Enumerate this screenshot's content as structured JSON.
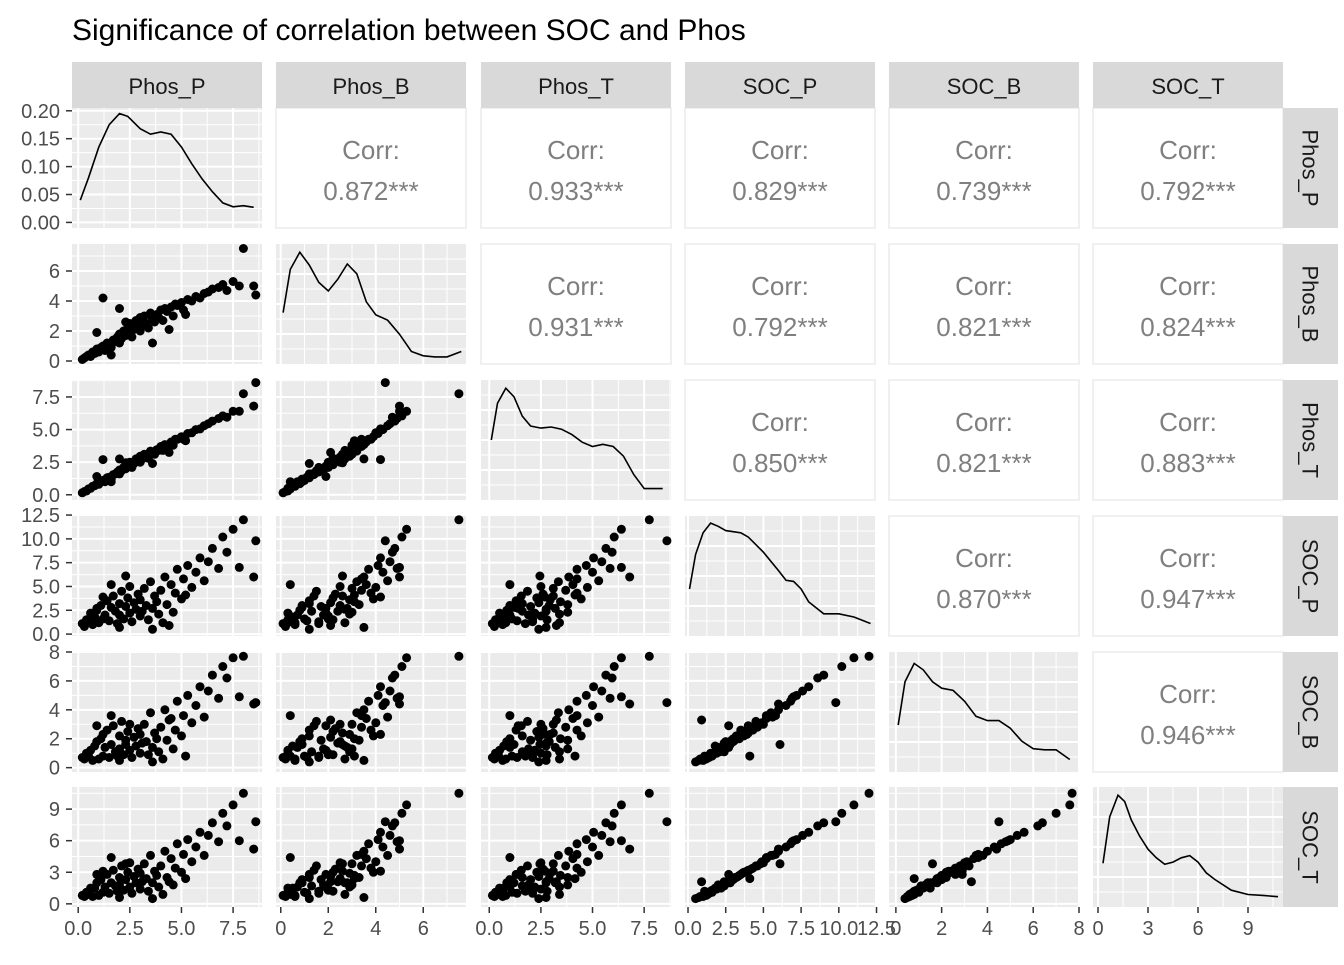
{
  "chart_data": {
    "type": "scatter_matrix",
    "title": "Significance of correlation between SOC and Phos",
    "variables": [
      "Phos_P",
      "Phos_B",
      "Phos_T",
      "SOC_P",
      "SOC_B",
      "SOC_T"
    ],
    "correlation_label": "Corr:",
    "correlations": [
      {
        "row": "Phos_P",
        "col": "Phos_B",
        "text": "0.872***"
      },
      {
        "row": "Phos_P",
        "col": "Phos_T",
        "text": "0.933***"
      },
      {
        "row": "Phos_P",
        "col": "SOC_P",
        "text": "0.829***"
      },
      {
        "row": "Phos_P",
        "col": "SOC_B",
        "text": "0.739***"
      },
      {
        "row": "Phos_P",
        "col": "SOC_T",
        "text": "0.792***"
      },
      {
        "row": "Phos_B",
        "col": "Phos_T",
        "text": "0.931***"
      },
      {
        "row": "Phos_B",
        "col": "SOC_P",
        "text": "0.792***"
      },
      {
        "row": "Phos_B",
        "col": "SOC_B",
        "text": "0.821***"
      },
      {
        "row": "Phos_B",
        "col": "SOC_T",
        "text": "0.824***"
      },
      {
        "row": "Phos_T",
        "col": "SOC_P",
        "text": "0.850***"
      },
      {
        "row": "Phos_T",
        "col": "SOC_B",
        "text": "0.821***"
      },
      {
        "row": "Phos_T",
        "col": "SOC_T",
        "text": "0.883***"
      },
      {
        "row": "SOC_P",
        "col": "SOC_B",
        "text": "0.870***"
      },
      {
        "row": "SOC_P",
        "col": "SOC_T",
        "text": "0.947***"
      },
      {
        "row": "SOC_B",
        "col": "SOC_T",
        "text": "0.946***"
      }
    ],
    "axes": {
      "Phos_P": {
        "range": [
          -0.3,
          8.9
        ],
        "ticks": [
          "0.0",
          "2.5",
          "5.0",
          "7.5"
        ],
        "tick_values": [
          0,
          2.5,
          5,
          7.5
        ]
      },
      "Phos_B": {
        "range": [
          -0.2,
          7.8
        ],
        "ticks": [
          "0",
          "2",
          "4",
          "6"
        ],
        "tick_values": [
          0,
          2,
          4,
          6
        ]
      },
      "Phos_T": {
        "range": [
          -0.4,
          8.8
        ],
        "ticks": [
          "0.0",
          "2.5",
          "5.0",
          "7.5"
        ],
        "tick_values": [
          0,
          2.5,
          5,
          7.5
        ]
      },
      "SOC_P": {
        "range": [
          -0.2,
          12.4
        ],
        "ticks": [
          "0.0",
          "2.5",
          "5.0",
          "7.5",
          "10.0",
          "12.5"
        ],
        "tick_values": [
          0,
          2.5,
          5,
          7.5,
          10,
          12.5
        ]
      },
      "SOC_B": {
        "range": [
          -0.3,
          8.0
        ],
        "ticks": [
          "0",
          "2",
          "4",
          "6",
          "8"
        ],
        "tick_values": [
          0,
          2,
          4,
          6,
          8
        ]
      },
      "SOC_T": {
        "range": [
          -0.3,
          11.1
        ],
        "ticks": [
          "0",
          "3",
          "6",
          "9"
        ],
        "tick_values": [
          0,
          3,
          6,
          9
        ]
      }
    },
    "density_axis": {
      "range": [
        -0.01,
        0.205
      ],
      "ticks": [
        "0.00",
        "0.05",
        "0.10",
        "0.15",
        "0.20"
      ],
      "tick_values": [
        0,
        0.05,
        0.1,
        0.15,
        0.2
      ]
    },
    "densities": {
      "Phos_P": {
        "x": [
          0.1,
          0.5,
          1,
          1.5,
          2,
          2.4,
          3,
          3.5,
          4,
          4.5,
          5,
          5.5,
          6,
          6.5,
          7,
          7.5,
          8,
          8.5
        ],
        "y": [
          0.04,
          0.08,
          0.135,
          0.175,
          0.195,
          0.19,
          0.168,
          0.158,
          0.162,
          0.158,
          0.135,
          0.105,
          0.078,
          0.055,
          0.035,
          0.028,
          0.03,
          0.027
        ]
      },
      "Phos_B": {
        "range": [
          0.1,
          7.6
        ],
        "x": [
          0.1,
          0.4,
          0.8,
          1.2,
          1.6,
          2,
          2.4,
          2.8,
          3.2,
          3.6,
          4,
          4.5,
          5,
          5.5,
          6,
          6.5,
          7,
          7.6
        ],
        "y": [
          0.42,
          0.82,
          0.98,
          0.86,
          0.7,
          0.62,
          0.73,
          0.87,
          0.78,
          0.52,
          0.4,
          0.35,
          0.22,
          0.06,
          0.02,
          0.01,
          0.01,
          0.06
        ]
      },
      "Phos_T": {
        "range": [
          0.1,
          8.4
        ],
        "x": [
          0.1,
          0.4,
          0.8,
          1.2,
          1.6,
          2,
          2.5,
          3,
          3.5,
          4,
          4.5,
          5,
          5.5,
          6,
          6.5,
          7,
          7.5,
          8.4
        ],
        "y": [
          0.5,
          0.84,
          0.98,
          0.9,
          0.72,
          0.63,
          0.61,
          0.62,
          0.6,
          0.55,
          0.48,
          0.44,
          0.46,
          0.44,
          0.35,
          0.18,
          0.05,
          0.05
        ]
      },
      "SOC_P": {
        "range": [
          0.1,
          12.1
        ],
        "x": [
          0.1,
          0.5,
          1,
          1.5,
          2,
          2.5,
          3,
          3.5,
          4,
          5,
          6,
          6.5,
          7,
          7.5,
          8,
          9,
          10,
          11,
          12.1
        ],
        "y": [
          0.38,
          0.7,
          0.9,
          0.99,
          0.96,
          0.92,
          0.91,
          0.9,
          0.86,
          0.72,
          0.55,
          0.46,
          0.45,
          0.38,
          0.26,
          0.15,
          0.15,
          0.12,
          0.06
        ]
      },
      "SOC_B": {
        "range": [
          0.1,
          7.6
        ],
        "x": [
          0.1,
          0.4,
          0.8,
          1.2,
          1.6,
          2,
          2.5,
          3,
          3.5,
          4,
          4.5,
          5,
          5.5,
          6,
          6.5,
          7,
          7.6
        ],
        "y": [
          0.38,
          0.78,
          0.95,
          0.89,
          0.78,
          0.72,
          0.7,
          0.6,
          0.46,
          0.42,
          0.42,
          0.35,
          0.23,
          0.16,
          0.15,
          0.15,
          0.06
        ]
      },
      "SOC_T": {
        "range": [
          0.3,
          10.8
        ],
        "x": [
          0.3,
          0.7,
          1.2,
          1.6,
          2,
          2.5,
          3,
          3.5,
          4,
          4.5,
          5,
          5.5,
          6,
          6.5,
          7,
          8,
          9,
          10,
          10.8
        ],
        "y": [
          0.35,
          0.78,
          0.98,
          0.92,
          0.75,
          0.6,
          0.48,
          0.4,
          0.34,
          0.36,
          0.4,
          0.42,
          0.36,
          0.26,
          0.2,
          0.1,
          0.06,
          0.05,
          0.04
        ]
      }
    },
    "points": [
      {
        "Phos_P": 0.2,
        "Phos_B": 0.1,
        "Phos_T": 0.15,
        "SOC_P": 1.1,
        "SOC_B": 0.7,
        "SOC_T": 0.8
      },
      {
        "Phos_P": 0.3,
        "Phos_B": 0.2,
        "Phos_T": 0.25,
        "SOC_P": 0.8,
        "SOC_B": 0.6,
        "SOC_T": 0.7
      },
      {
        "Phos_P": 0.4,
        "Phos_B": 0.3,
        "Phos_T": 0.3,
        "SOC_P": 1.5,
        "SOC_B": 1.0,
        "SOC_T": 1.1
      },
      {
        "Phos_P": 0.5,
        "Phos_B": 0.4,
        "Phos_T": 0.45,
        "SOC_P": 1.3,
        "SOC_B": 0.8,
        "SOC_T": 0.9
      },
      {
        "Phos_P": 0.6,
        "Phos_B": 0.3,
        "Phos_T": 0.5,
        "SOC_P": 2.2,
        "SOC_B": 1.2,
        "SOC_T": 1.5
      },
      {
        "Phos_P": 0.7,
        "Phos_B": 0.6,
        "Phos_T": 0.65,
        "SOC_P": 1.0,
        "SOC_B": 0.5,
        "SOC_T": 0.7
      },
      {
        "Phos_P": 0.8,
        "Phos_B": 0.5,
        "Phos_T": 0.7,
        "SOC_P": 1.8,
        "SOC_B": 1.5,
        "SOC_T": 1.5
      },
      {
        "Phos_P": 0.9,
        "Phos_B": 0.8,
        "Phos_T": 0.85,
        "SOC_P": 2.5,
        "SOC_B": 1.8,
        "SOC_T": 2.0
      },
      {
        "Phos_P": 1.0,
        "Phos_B": 0.6,
        "Phos_T": 0.8,
        "SOC_P": 1.2,
        "SOC_B": 0.6,
        "SOC_T": 0.8
      },
      {
        "Phos_P": 1.1,
        "Phos_B": 0.9,
        "Phos_T": 1.0,
        "SOC_P": 3.0,
        "SOC_B": 2.0,
        "SOC_T": 2.3
      },
      {
        "Phos_P": 1.2,
        "Phos_B": 1.0,
        "Phos_T": 1.1,
        "SOC_P": 1.6,
        "SOC_B": 0.8,
        "SOC_T": 1.1
      },
      {
        "Phos_P": 1.3,
        "Phos_B": 0.7,
        "Phos_T": 1.0,
        "SOC_P": 2.0,
        "SOC_B": 1.4,
        "SOC_T": 1.6
      },
      {
        "Phos_P": 1.4,
        "Phos_B": 1.2,
        "Phos_T": 1.3,
        "SOC_P": 3.5,
        "SOC_B": 2.6,
        "SOC_T": 2.8
      },
      {
        "Phos_P": 1.5,
        "Phos_B": 1.1,
        "Phos_T": 1.35,
        "SOC_P": 1.4,
        "SOC_B": 0.7,
        "SOC_T": 1.0
      },
      {
        "Phos_P": 1.6,
        "Phos_B": 0.9,
        "Phos_T": 1.2,
        "SOC_P": 2.8,
        "SOC_B": 1.6,
        "SOC_T": 2.0
      },
      {
        "Phos_P": 1.7,
        "Phos_B": 1.4,
        "Phos_T": 1.55,
        "SOC_P": 4.0,
        "SOC_B": 2.9,
        "SOC_T": 3.2
      },
      {
        "Phos_P": 1.8,
        "Phos_B": 1.3,
        "Phos_T": 1.6,
        "SOC_P": 2.4,
        "SOC_B": 1.1,
        "SOC_T": 1.7
      },
      {
        "Phos_P": 1.9,
        "Phos_B": 1.6,
        "Phos_T": 1.75,
        "SOC_P": 1.1,
        "SOC_B": 0.8,
        "SOC_T": 1.2
      },
      {
        "Phos_P": 2.0,
        "Phos_B": 1.2,
        "Phos_T": 1.6,
        "SOC_P": 3.2,
        "SOC_B": 2.2,
        "SOC_T": 2.5
      },
      {
        "Phos_P": 2.0,
        "Phos_B": 1.8,
        "Phos_T": 1.9,
        "SOC_P": 2.0,
        "SOC_B": 1.3,
        "SOC_T": 1.8
      },
      {
        "Phos_P": 2.1,
        "Phos_B": 1.5,
        "Phos_T": 1.85,
        "SOC_P": 4.5,
        "SOC_B": 3.2,
        "SOC_T": 3.6
      },
      {
        "Phos_P": 2.2,
        "Phos_B": 2.0,
        "Phos_T": 2.1,
        "SOC_P": 1.6,
        "SOC_B": 0.9,
        "SOC_T": 1.3
      },
      {
        "Phos_P": 2.3,
        "Phos_B": 1.7,
        "Phos_T": 2.0,
        "SOC_P": 2.9,
        "SOC_B": 1.9,
        "SOC_T": 2.3
      },
      {
        "Phos_P": 2.4,
        "Phos_B": 2.2,
        "Phos_T": 2.3,
        "SOC_P": 3.8,
        "SOC_B": 2.5,
        "SOC_T": 3.0
      },
      {
        "Phos_P": 2.5,
        "Phos_B": 1.9,
        "Phos_T": 2.2,
        "SOC_P": 2.2,
        "SOC_B": 1.2,
        "SOC_T": 1.6
      },
      {
        "Phos_P": 2.5,
        "Phos_B": 2.5,
        "Phos_T": 2.5,
        "SOC_P": 5.0,
        "SOC_B": 3.0,
        "SOC_T": 3.9
      },
      {
        "Phos_P": 2.6,
        "Phos_B": 1.6,
        "Phos_T": 2.1,
        "SOC_P": 1.3,
        "SOC_B": 0.7,
        "SOC_T": 1.0
      },
      {
        "Phos_P": 2.7,
        "Phos_B": 2.1,
        "Phos_T": 2.4,
        "SOC_P": 3.3,
        "SOC_B": 2.1,
        "SOC_T": 2.6
      },
      {
        "Phos_P": 2.8,
        "Phos_B": 2.7,
        "Phos_T": 2.75,
        "SOC_P": 2.6,
        "SOC_B": 1.5,
        "SOC_T": 2.0
      },
      {
        "Phos_P": 2.9,
        "Phos_B": 2.3,
        "Phos_T": 2.6,
        "SOC_P": 4.2,
        "SOC_B": 2.7,
        "SOC_T": 3.3
      },
      {
        "Phos_P": 3.0,
        "Phos_B": 2.0,
        "Phos_T": 2.5,
        "SOC_P": 1.9,
        "SOC_B": 1.0,
        "SOC_T": 1.4
      },
      {
        "Phos_P": 3.0,
        "Phos_B": 2.9,
        "Phos_T": 2.95,
        "SOC_P": 3.6,
        "SOC_B": 2.3,
        "SOC_T": 2.9
      },
      {
        "Phos_P": 3.1,
        "Phos_B": 2.4,
        "Phos_T": 2.75,
        "SOC_P": 2.4,
        "SOC_B": 1.7,
        "SOC_T": 2.1
      },
      {
        "Phos_P": 3.2,
        "Phos_B": 3.0,
        "Phos_T": 3.1,
        "SOC_P": 4.8,
        "SOC_B": 3.0,
        "SOC_T": 3.8
      },
      {
        "Phos_P": 3.3,
        "Phos_B": 2.5,
        "Phos_T": 2.9,
        "SOC_P": 3.0,
        "SOC_B": 1.8,
        "SOC_T": 2.4
      },
      {
        "Phos_P": 3.4,
        "Phos_B": 2.2,
        "Phos_T": 2.8,
        "SOC_P": 1.5,
        "SOC_B": 0.9,
        "SOC_T": 1.2
      },
      {
        "Phos_P": 3.5,
        "Phos_B": 3.2,
        "Phos_T": 3.35,
        "SOC_P": 5.5,
        "SOC_B": 3.8,
        "SOC_T": 4.6
      },
      {
        "Phos_P": 3.6,
        "Phos_B": 2.8,
        "Phos_T": 3.2,
        "SOC_P": 2.7,
        "SOC_B": 1.4,
        "SOC_T": 2.0
      },
      {
        "Phos_P": 3.7,
        "Phos_B": 2.6,
        "Phos_T": 3.1,
        "SOC_P": 4.0,
        "SOC_B": 2.4,
        "SOC_T": 3.1
      },
      {
        "Phos_P": 3.8,
        "Phos_B": 3.1,
        "Phos_T": 3.45,
        "SOC_P": 3.4,
        "SOC_B": 2.0,
        "SOC_T": 2.7
      },
      {
        "Phos_P": 3.9,
        "Phos_B": 2.9,
        "Phos_T": 3.4,
        "SOC_P": 2.1,
        "SOC_B": 1.1,
        "SOC_T": 1.6
      },
      {
        "Phos_P": 4.0,
        "Phos_B": 3.4,
        "Phos_T": 3.7,
        "SOC_P": 4.6,
        "SOC_B": 2.8,
        "SOC_T": 3.6
      },
      {
        "Phos_P": 4.1,
        "Phos_B": 2.7,
        "Phos_T": 3.4,
        "SOC_P": 1.2,
        "SOC_B": 0.6,
        "SOC_T": 0.9
      },
      {
        "Phos_P": 4.2,
        "Phos_B": 3.5,
        "Phos_T": 3.85,
        "SOC_P": 6.0,
        "SOC_B": 4.0,
        "SOC_T": 5.0
      },
      {
        "Phos_P": 4.3,
        "Phos_B": 3.3,
        "Phos_T": 3.8,
        "SOC_P": 3.1,
        "SOC_B": 1.9,
        "SOC_T": 2.5
      },
      {
        "Phos_P": 4.5,
        "Phos_B": 3.6,
        "Phos_T": 4.05,
        "SOC_P": 5.2,
        "SOC_B": 3.4,
        "SOC_T": 4.3
      },
      {
        "Phos_P": 4.6,
        "Phos_B": 3.0,
        "Phos_T": 3.8,
        "SOC_P": 2.3,
        "SOC_B": 1.3,
        "SOC_T": 1.8
      },
      {
        "Phos_P": 4.7,
        "Phos_B": 3.8,
        "Phos_T": 4.25,
        "SOC_P": 4.3,
        "SOC_B": 2.6,
        "SOC_T": 3.4
      },
      {
        "Phos_P": 4.8,
        "Phos_B": 3.7,
        "Phos_T": 4.25,
        "SOC_P": 6.8,
        "SOC_B": 4.6,
        "SOC_T": 5.7
      },
      {
        "Phos_P": 5.0,
        "Phos_B": 3.9,
        "Phos_T": 4.45,
        "SOC_P": 3.7,
        "SOC_B": 2.2,
        "SOC_T": 3.0
      },
      {
        "Phos_P": 5.1,
        "Phos_B": 3.4,
        "Phos_T": 4.25,
        "SOC_P": 5.8,
        "SOC_B": 3.6,
        "SOC_T": 4.7
      },
      {
        "Phos_P": 5.3,
        "Phos_B": 4.1,
        "Phos_T": 4.7,
        "SOC_P": 7.2,
        "SOC_B": 5.0,
        "SOC_T": 6.1
      },
      {
        "Phos_P": 5.5,
        "Phos_B": 4.0,
        "Phos_T": 4.75,
        "SOC_P": 4.9,
        "SOC_B": 3.1,
        "SOC_T": 4.0
      },
      {
        "Phos_P": 5.7,
        "Phos_B": 4.3,
        "Phos_T": 5.0,
        "SOC_P": 6.5,
        "SOC_B": 4.3,
        "SOC_T": 5.4
      },
      {
        "Phos_P": 5.9,
        "Phos_B": 4.2,
        "Phos_T": 5.05,
        "SOC_P": 8.0,
        "SOC_B": 5.6,
        "SOC_T": 6.8
      },
      {
        "Phos_P": 6.1,
        "Phos_B": 4.5,
        "Phos_T": 5.3,
        "SOC_P": 5.6,
        "SOC_B": 3.5,
        "SOC_T": 4.6
      },
      {
        "Phos_P": 6.3,
        "Phos_B": 4.6,
        "Phos_T": 5.45,
        "SOC_P": 7.6,
        "SOC_B": 5.3,
        "SOC_T": 6.5
      },
      {
        "Phos_P": 6.5,
        "Phos_B": 4.8,
        "Phos_T": 5.65,
        "SOC_P": 9.0,
        "SOC_B": 6.4,
        "SOC_T": 7.7
      },
      {
        "Phos_P": 6.8,
        "Phos_B": 4.9,
        "Phos_T": 5.85,
        "SOC_P": 6.9,
        "SOC_B": 4.8,
        "SOC_T": 5.9
      },
      {
        "Phos_P": 7.0,
        "Phos_B": 5.1,
        "Phos_T": 6.05,
        "SOC_P": 10.2,
        "SOC_B": 7.0,
        "SOC_T": 8.6
      },
      {
        "Phos_P": 7.2,
        "Phos_B": 4.7,
        "Phos_T": 5.95,
        "SOC_P": 8.6,
        "SOC_B": 6.2,
        "SOC_T": 7.4
      },
      {
        "Phos_P": 7.5,
        "Phos_B": 5.3,
        "Phos_T": 6.4,
        "SOC_P": 11.0,
        "SOC_B": 7.6,
        "SOC_T": 9.4
      },
      {
        "Phos_P": 7.8,
        "Phos_B": 5.0,
        "Phos_T": 6.4,
        "SOC_P": 7.0,
        "SOC_B": 4.9,
        "SOC_T": 6.0
      },
      {
        "Phos_P": 8.0,
        "Phos_B": 7.5,
        "Phos_T": 7.75,
        "SOC_P": 12.0,
        "SOC_B": 7.7,
        "SOC_T": 10.5
      },
      {
        "Phos_P": 8.6,
        "Phos_B": 4.4,
        "Phos_T": 8.6,
        "SOC_P": 9.8,
        "SOC_B": 4.5,
        "SOC_T": 7.8
      },
      {
        "Phos_P": 8.5,
        "Phos_B": 5.0,
        "Phos_T": 6.8,
        "SOC_P": 6.0,
        "SOC_B": 4.4,
        "SOC_T": 5.2
      },
      {
        "Phos_P": 1.2,
        "Phos_B": 4.2,
        "Phos_T": 2.7,
        "SOC_P": 3.9,
        "SOC_B": 2.3,
        "SOC_T": 3.1
      },
      {
        "Phos_P": 2.0,
        "Phos_B": 3.5,
        "Phos_T": 2.75,
        "SOC_P": 0.7,
        "SOC_B": 0.5,
        "SOC_T": 0.6
      },
      {
        "Phos_P": 3.6,
        "Phos_B": 1.2,
        "Phos_T": 2.4,
        "SOC_P": 0.5,
        "SOC_B": 0.4,
        "SOC_T": 0.5
      },
      {
        "Phos_P": 0.9,
        "Phos_B": 1.9,
        "Phos_T": 1.4,
        "SOC_P": 2.7,
        "SOC_B": 2.9,
        "SOC_T": 2.8
      },
      {
        "Phos_P": 4.4,
        "Phos_B": 2.1,
        "Phos_T": 3.25,
        "SOC_P": 0.9,
        "SOC_B": 3.3,
        "SOC_T": 2.1
      },
      {
        "Phos_P": 5.2,
        "Phos_B": 3.1,
        "Phos_T": 4.15,
        "SOC_P": 4.1,
        "SOC_B": 0.8,
        "SOC_T": 2.4
      },
      {
        "Phos_P": 1.6,
        "Phos_B": 0.4,
        "Phos_T": 1.0,
        "SOC_P": 5.2,
        "SOC_B": 3.6,
        "SOC_T": 4.4
      },
      {
        "Phos_P": 2.3,
        "Phos_B": 2.6,
        "Phos_T": 2.45,
        "SOC_P": 6.1,
        "SOC_B": 1.6,
        "SOC_T": 3.8
      }
    ]
  }
}
